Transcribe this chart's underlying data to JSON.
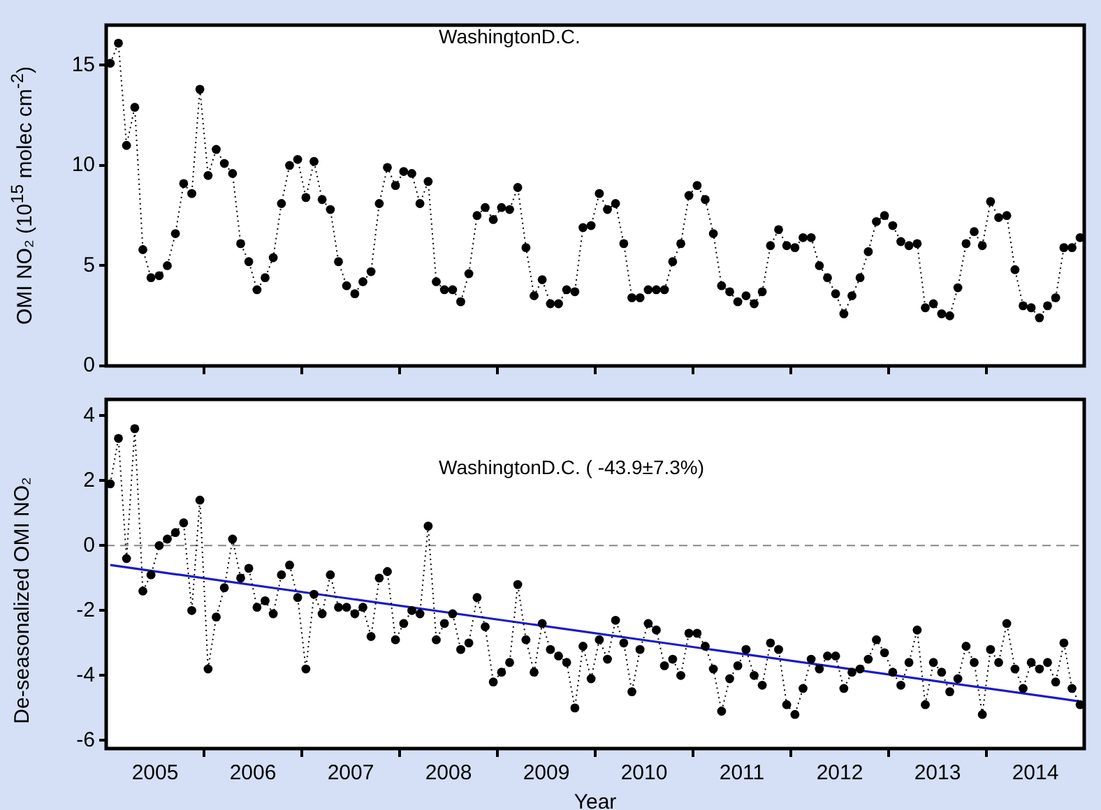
{
  "chart_data": [
    {
      "type": "line",
      "ylabel": "OMI NO₂ (10$^{15}$ molec cm$^{-2}$)",
      "annotations": [
        "WashingtonD.C."
      ],
      "x": [
        2005.042,
        2005.125,
        2005.208,
        2005.292,
        2005.375,
        2005.458,
        2005.542,
        2005.625,
        2005.708,
        2005.792,
        2005.875,
        2005.958,
        2006.042,
        2006.125,
        2006.208,
        2006.292,
        2006.375,
        2006.458,
        2006.542,
        2006.625,
        2006.708,
        2006.792,
        2006.875,
        2006.958,
        2007.042,
        2007.125,
        2007.208,
        2007.292,
        2007.375,
        2007.458,
        2007.542,
        2007.625,
        2007.708,
        2007.792,
        2007.875,
        2007.958,
        2008.042,
        2008.125,
        2008.208,
        2008.292,
        2008.375,
        2008.458,
        2008.542,
        2008.625,
        2008.708,
        2008.792,
        2008.875,
        2008.958,
        2009.042,
        2009.125,
        2009.208,
        2009.292,
        2009.375,
        2009.458,
        2009.542,
        2009.625,
        2009.708,
        2009.792,
        2009.875,
        2009.958,
        2010.042,
        2010.125,
        2010.208,
        2010.292,
        2010.375,
        2010.458,
        2010.542,
        2010.625,
        2010.708,
        2010.792,
        2010.875,
        2010.958,
        2011.042,
        2011.125,
        2011.208,
        2011.292,
        2011.375,
        2011.458,
        2011.542,
        2011.625,
        2011.708,
        2011.792,
        2011.875,
        2011.958,
        2012.042,
        2012.125,
        2012.208,
        2012.292,
        2012.375,
        2012.458,
        2012.542,
        2012.625,
        2012.708,
        2012.792,
        2012.875,
        2012.958,
        2013.042,
        2013.125,
        2013.208,
        2013.292,
        2013.375,
        2013.458,
        2013.542,
        2013.625,
        2013.708,
        2013.792,
        2013.875,
        2013.958,
        2014.042,
        2014.125,
        2014.208,
        2014.292,
        2014.375,
        2014.458,
        2014.542,
        2014.625,
        2014.708,
        2014.792,
        2014.875,
        2014.958
      ],
      "series": [
        {
          "color": "#000000",
          "marker": "circle",
          "line_style": "dotted",
          "values": [
            15.1,
            16.1,
            11.0,
            12.9,
            5.8,
            4.4,
            4.5,
            5.0,
            6.6,
            9.1,
            8.6,
            13.8,
            9.5,
            10.8,
            10.1,
            9.6,
            6.1,
            5.2,
            3.8,
            4.4,
            5.4,
            8.1,
            10.0,
            10.3,
            8.4,
            10.2,
            8.3,
            7.8,
            5.2,
            4.0,
            3.6,
            4.2,
            4.7,
            8.1,
            9.9,
            9.0,
            9.7,
            9.6,
            8.1,
            9.2,
            4.2,
            3.8,
            3.8,
            3.2,
            4.6,
            7.5,
            7.9,
            7.3,
            7.9,
            7.8,
            8.9,
            5.9,
            3.5,
            4.3,
            3.1,
            3.1,
            3.8,
            3.7,
            6.9,
            7.0,
            8.6,
            7.8,
            8.1,
            6.1,
            3.4,
            3.4,
            3.8,
            3.8,
            3.8,
            5.2,
            6.1,
            8.5,
            9.0,
            8.3,
            6.6,
            4.0,
            3.7,
            3.2,
            3.5,
            3.1,
            3.7,
            6.0,
            6.8,
            6.0,
            5.9,
            6.4,
            6.4,
            5.0,
            4.4,
            3.6,
            2.6,
            3.5,
            4.4,
            5.7,
            7.2,
            7.5,
            7.0,
            6.2,
            6.0,
            6.1,
            2.9,
            3.1,
            2.6,
            2.5,
            3.9,
            6.1,
            6.7,
            6.0,
            8.2,
            7.4,
            7.5,
            4.8,
            3.0,
            2.9,
            2.4,
            3.0,
            3.4,
            5.9,
            5.9,
            6.4
          ]
        }
      ],
      "xlim": [
        2005,
        2015
      ],
      "xticks": [
        {
          "value": 2006,
          "label": null
        },
        {
          "value": 2007,
          "label": null
        },
        {
          "value": 2008,
          "label": null
        },
        {
          "value": 2009,
          "label": null
        },
        {
          "value": 2010,
          "label": null
        },
        {
          "value": 2011,
          "label": null
        },
        {
          "value": 2012,
          "label": null
        },
        {
          "value": 2013,
          "label": null
        },
        {
          "value": 2014,
          "label": null
        }
      ],
      "ylim": [
        0,
        17
      ],
      "yticks": [
        0,
        5,
        10,
        15
      ],
      "tick_labels": "y",
      "legend": false,
      "grid": false
    },
    {
      "type": "line",
      "xlabel": "Year",
      "ylabel": "De-seasonalized OMI NO₂",
      "annotations": [
        "WashingtonD.C. ( -43.9±7.3%)"
      ],
      "x": [
        2005.042,
        2005.125,
        2005.208,
        2005.292,
        2005.375,
        2005.458,
        2005.542,
        2005.625,
        2005.708,
        2005.792,
        2005.875,
        2005.958,
        2006.042,
        2006.125,
        2006.208,
        2006.292,
        2006.375,
        2006.458,
        2006.542,
        2006.625,
        2006.708,
        2006.792,
        2006.875,
        2006.958,
        2007.042,
        2007.125,
        2007.208,
        2007.292,
        2007.375,
        2007.458,
        2007.542,
        2007.625,
        2007.708,
        2007.792,
        2007.875,
        2007.958,
        2008.042,
        2008.125,
        2008.208,
        2008.292,
        2008.375,
        2008.458,
        2008.542,
        2008.625,
        2008.708,
        2008.792,
        2008.875,
        2008.958,
        2009.042,
        2009.125,
        2009.208,
        2009.292,
        2009.375,
        2009.458,
        2009.542,
        2009.625,
        2009.708,
        2009.792,
        2009.875,
        2009.958,
        2010.042,
        2010.125,
        2010.208,
        2010.292,
        2010.375,
        2010.458,
        2010.542,
        2010.625,
        2010.708,
        2010.792,
        2010.875,
        2010.958,
        2011.042,
        2011.125,
        2011.208,
        2011.292,
        2011.375,
        2011.458,
        2011.542,
        2011.625,
        2011.708,
        2011.792,
        2011.875,
        2011.958,
        2012.042,
        2012.125,
        2012.208,
        2012.292,
        2012.375,
        2012.458,
        2012.542,
        2012.625,
        2012.708,
        2012.792,
        2012.875,
        2012.958,
        2013.042,
        2013.125,
        2013.208,
        2013.292,
        2013.375,
        2013.458,
        2013.542,
        2013.625,
        2013.708,
        2013.792,
        2013.875,
        2013.958,
        2014.042,
        2014.125,
        2014.208,
        2014.292,
        2014.375,
        2014.458,
        2014.542,
        2014.625,
        2014.708,
        2014.792,
        2014.875,
        2014.958
      ],
      "series": [
        {
          "color": "#000000",
          "marker": "circle",
          "line_style": "dotted",
          "values": [
            1.9,
            3.3,
            -0.4,
            3.6,
            -1.4,
            -0.9,
            0.0,
            0.2,
            0.4,
            0.7,
            -2.0,
            1.4,
            -3.8,
            -2.2,
            -1.3,
            0.2,
            -1.0,
            -0.7,
            -1.9,
            -1.7,
            -2.1,
            -0.9,
            -0.6,
            -1.6,
            -3.8,
            -1.5,
            -2.1,
            -0.9,
            -1.9,
            -1.9,
            -2.1,
            -1.9,
            -2.8,
            -1.0,
            -0.8,
            -2.9,
            -2.4,
            -2.0,
            -2.1,
            0.6,
            -2.9,
            -2.4,
            -2.1,
            -3.2,
            -3.0,
            -1.6,
            -2.5,
            -4.2,
            -3.9,
            -3.6,
            -1.2,
            -2.9,
            -3.9,
            -2.4,
            -3.2,
            -3.4,
            -3.6,
            -5.0,
            -3.1,
            -4.1,
            -2.9,
            -3.5,
            -2.3,
            -3.0,
            -4.5,
            -3.2,
            -2.4,
            -2.6,
            -3.7,
            -3.5,
            -4.0,
            -2.7,
            -2.7,
            -3.1,
            -3.8,
            -5.1,
            -4.1,
            -3.7,
            -3.2,
            -4.0,
            -4.3,
            -3.0,
            -3.2,
            -4.9,
            -5.2,
            -4.4,
            -3.5,
            -3.8,
            -3.4,
            -3.4,
            -4.4,
            -3.9,
            -3.8,
            -3.5,
            -2.9,
            -3.3,
            -3.9,
            -4.3,
            -3.6,
            -2.6,
            -4.9,
            -3.6,
            -3.9,
            -4.5,
            -4.1,
            -3.1,
            -3.6,
            -5.2,
            -3.2,
            -3.6,
            -2.4,
            -3.8,
            -4.4,
            -3.6,
            -3.8,
            -3.6,
            -4.2,
            -3.0,
            -4.4,
            -4.9
          ]
        },
        {
          "type": "line",
          "color": "#1a1acc",
          "marker": "none",
          "line_style": "solid",
          "x": [
            2005.042,
            2014.958
          ],
          "values": [
            -0.6,
            -4.8
          ]
        }
      ],
      "ref_lines": [
        {
          "axis": "y",
          "value": 0,
          "color": "#888888",
          "line_style": "dashed"
        }
      ],
      "xlim": [
        2005,
        2015
      ],
      "xticks": [
        {
          "value": 2005.5,
          "label": "2005"
        },
        {
          "value": 2006,
          "label": null
        },
        {
          "value": 2006.5,
          "label": "2006"
        },
        {
          "value": 2007,
          "label": null
        },
        {
          "value": 2007.5,
          "label": "2007"
        },
        {
          "value": 2008,
          "label": null
        },
        {
          "value": 2008.5,
          "label": "2008"
        },
        {
          "value": 2009,
          "label": null
        },
        {
          "value": 2009.5,
          "label": "2009"
        },
        {
          "value": 2010,
          "label": null
        },
        {
          "value": 2010.5,
          "label": "2010"
        },
        {
          "value": 2011,
          "label": null
        },
        {
          "value": 2011.5,
          "label": "2011"
        },
        {
          "value": 2012,
          "label": null
        },
        {
          "value": 2012.5,
          "label": "2012"
        },
        {
          "value": 2013,
          "label": null
        },
        {
          "value": 2013.5,
          "label": "2013"
        },
        {
          "value": 2014,
          "label": null
        },
        {
          "value": 2014.5,
          "label": "2014"
        }
      ],
      "ylim": [
        -6.25,
        4.5
      ],
      "yticks": [
        -6,
        -4,
        -2,
        0,
        2,
        4
      ],
      "legend": false,
      "grid": false
    }
  ]
}
